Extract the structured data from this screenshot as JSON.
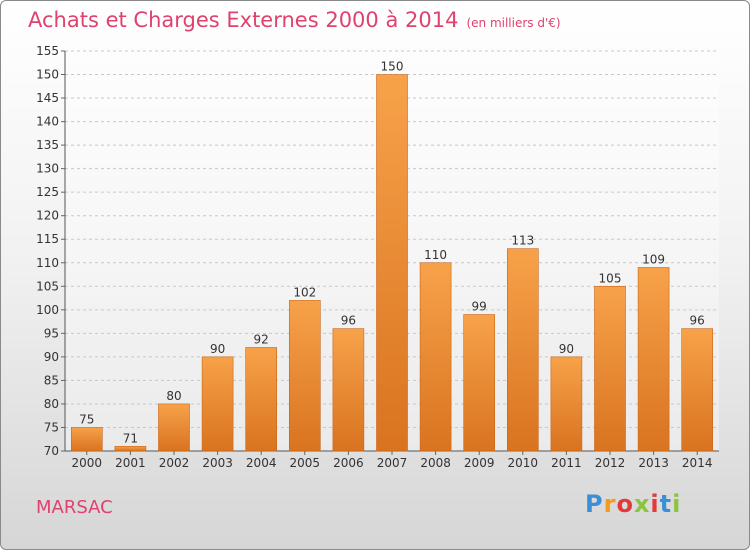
{
  "chart_data": {
    "type": "bar",
    "title": "Achats et Charges Externes 2000 à 2014",
    "unit": "(en milliers d'€)",
    "categories": [
      "2000",
      "2001",
      "2002",
      "2003",
      "2004",
      "2005",
      "2006",
      "2007",
      "2008",
      "2009",
      "2010",
      "2011",
      "2012",
      "2013",
      "2014"
    ],
    "values": [
      75,
      71,
      80,
      90,
      92,
      102,
      96,
      150,
      110,
      99,
      113,
      90,
      105,
      109,
      96
    ],
    "ylim": [
      70,
      155
    ],
    "yticks": [
      70,
      75,
      80,
      85,
      90,
      95,
      100,
      105,
      110,
      115,
      120,
      125,
      130,
      135,
      140,
      145,
      150,
      155
    ],
    "grid": true,
    "colors": {
      "bar_top": "#f7a24a",
      "bar_bottom": "#d97320",
      "text": "#333333",
      "accent": "#e0426e"
    }
  },
  "footer": {
    "commune": "MARSAC",
    "logo": {
      "letters": [
        "P",
        "r",
        "o",
        "x",
        "i",
        "t",
        "i"
      ],
      "colors": [
        "#3a8fd6",
        "#f29b1e",
        "#e23a3a",
        "#8bc53f",
        "#e23a3a",
        "#3a8fd6",
        "#8bc53f"
      ]
    }
  }
}
